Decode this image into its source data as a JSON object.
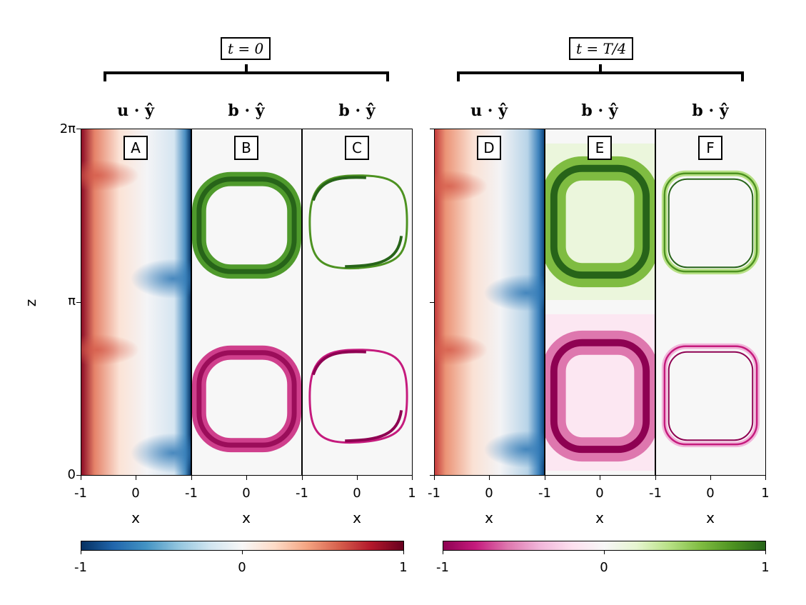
{
  "chart_data": {
    "type": "heatmap",
    "groups": [
      {
        "label": "t = 0",
        "panels": [
          "A",
          "B",
          "C"
        ]
      },
      {
        "label": "t = T/4",
        "panels": [
          "D",
          "E",
          "F"
        ]
      }
    ],
    "panels": [
      {
        "id": "A",
        "title": "u · ŷ",
        "field": "velocity",
        "group": "t = 0"
      },
      {
        "id": "B",
        "title": "b · ŷ",
        "field": "magnetic",
        "group": "t = 0"
      },
      {
        "id": "C",
        "title": "b · ŷ",
        "field": "magnetic",
        "group": "t = 0"
      },
      {
        "id": "D",
        "title": "u · ŷ",
        "field": "velocity",
        "group": "t = T/4"
      },
      {
        "id": "E",
        "title": "b · ŷ",
        "field": "magnetic",
        "group": "t = T/4"
      },
      {
        "id": "F",
        "title": "b · ŷ",
        "field": "magnetic",
        "group": "t = T/4"
      }
    ],
    "xlabel": "x",
    "ylabel": "z",
    "xlim": [
      -1,
      1
    ],
    "xticks": [
      "-1",
      "0",
      "-1",
      "0",
      "-1",
      "0",
      "1",
      "-1",
      "0",
      "-1",
      "0",
      "-1",
      "0",
      "1"
    ],
    "ylim": [
      0,
      6.2832
    ],
    "yticks": [
      "0",
      "π",
      "2π"
    ],
    "colorbars": [
      {
        "colormap": "RdBu_r",
        "range": [
          -1,
          1
        ],
        "ticks": [
          "-1",
          "0",
          "1"
        ]
      },
      {
        "colormap": "PiYG",
        "range": [
          -1,
          1
        ],
        "ticks": [
          "-1",
          "0",
          "1"
        ]
      }
    ]
  },
  "colors": {
    "red": "#67001f",
    "blue": "#053061",
    "white": "#f7f7f7",
    "green": "#276419",
    "magenta": "#8e0152"
  }
}
